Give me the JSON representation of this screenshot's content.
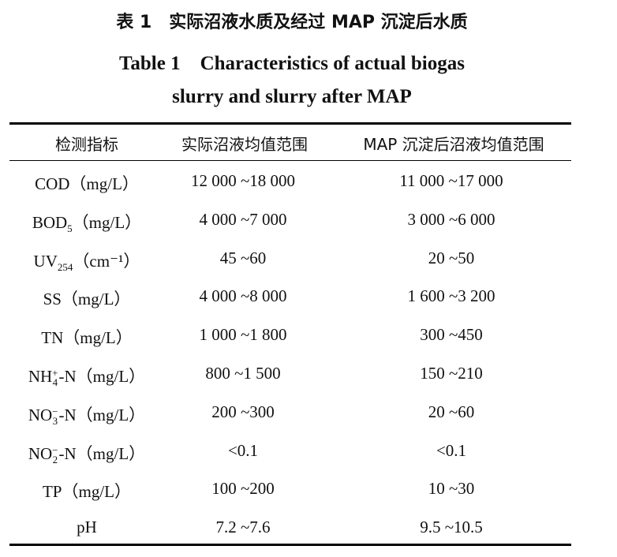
{
  "title": {
    "zh": "表 1　实际沼液水质及经过 MAP 沉淀后水质",
    "en_line1": "Table 1　Characteristics of actual biogas",
    "en_line2": "slurry and slurry after MAP"
  },
  "table": {
    "headers": [
      "检测指标",
      "实际沼液均值范围",
      "MAP 沉淀后沼液均值范围"
    ],
    "rows": [
      {
        "base": "COD",
        "sub": "",
        "sup": "",
        "rest": "（mg/L）",
        "actual": "12 000 ~18 000",
        "after": "11 000 ~17 000"
      },
      {
        "base": "BOD",
        "sub": "5",
        "sup": "",
        "rest": "（mg/L）",
        "actual": "4 000 ~7 000",
        "after": "3 000 ~6 000"
      },
      {
        "base": "UV",
        "sub": "254",
        "sup": "",
        "rest": "（cm⁻¹）",
        "actual": "45 ~60",
        "after": "20 ~50"
      },
      {
        "base": "SS",
        "sub": "",
        "sup": "",
        "rest": "（mg/L）",
        "actual": "4 000 ~8 000",
        "after": "1 600 ~3 200"
      },
      {
        "base": "TN",
        "sub": "",
        "sup": "",
        "rest": "（mg/L）",
        "actual": "1 000 ~1 800",
        "after": "300 ~450"
      },
      {
        "base": "NH",
        "sub": "4",
        "sup": "+",
        "rest": "-N（mg/L）",
        "actual": "800 ~1 500",
        "after": "150 ~210"
      },
      {
        "base": "NO",
        "sub": "3",
        "sup": "−",
        "rest": "-N（mg/L）",
        "actual": "200 ~300",
        "after": "20 ~60"
      },
      {
        "base": "NO",
        "sub": "2",
        "sup": "−",
        "rest": "-N（mg/L）",
        "actual": "<0.1",
        "after": "<0.1"
      },
      {
        "base": "TP",
        "sub": "",
        "sup": "",
        "rest": "（mg/L）",
        "actual": "100 ~200",
        "after": "10 ~30"
      },
      {
        "base": "pH",
        "sub": "",
        "sup": "",
        "rest": "",
        "actual": "7.2 ~7.6",
        "after": "9.5 ~10.5"
      }
    ]
  }
}
